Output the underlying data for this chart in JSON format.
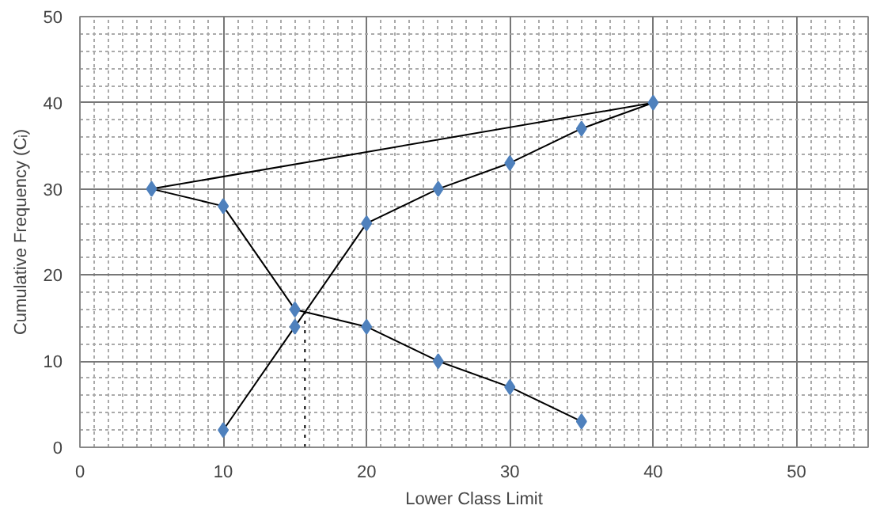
{
  "chart_data": {
    "type": "line",
    "xlabel": "Lower Class Limit",
    "ylabel": "Cumulative Frequency (Cᵢ)",
    "xlim": [
      0,
      55
    ],
    "ylim": [
      0,
      50
    ],
    "xticks": [
      0,
      10,
      20,
      30,
      40,
      50
    ],
    "yticks": [
      0,
      10,
      20,
      30,
      40,
      50
    ],
    "grid": true,
    "series": [
      {
        "x": [
          10,
          15,
          20,
          25,
          30,
          35,
          40,
          5,
          10,
          15,
          20,
          25,
          30,
          35
        ],
        "values": [
          2,
          14,
          26,
          30,
          33,
          37,
          40,
          30,
          28,
          16,
          14,
          10,
          7,
          3
        ],
        "color": "#000000",
        "marker": "none"
      },
      {
        "type": "scatter",
        "x": [
          10,
          15,
          20,
          25,
          30,
          35,
          40,
          5,
          10,
          15,
          20,
          25,
          30,
          35
        ],
        "values": [
          2,
          14,
          26,
          30,
          33,
          37,
          40,
          30,
          28,
          16,
          14,
          10,
          7,
          3
        ],
        "color": "#4f81bd",
        "marker": "diamond"
      },
      {
        "x": [
          15.7,
          15.7
        ],
        "values": [
          0,
          16
        ],
        "color": "#000000",
        "marker": "none",
        "line_style": "dotted"
      }
    ]
  }
}
